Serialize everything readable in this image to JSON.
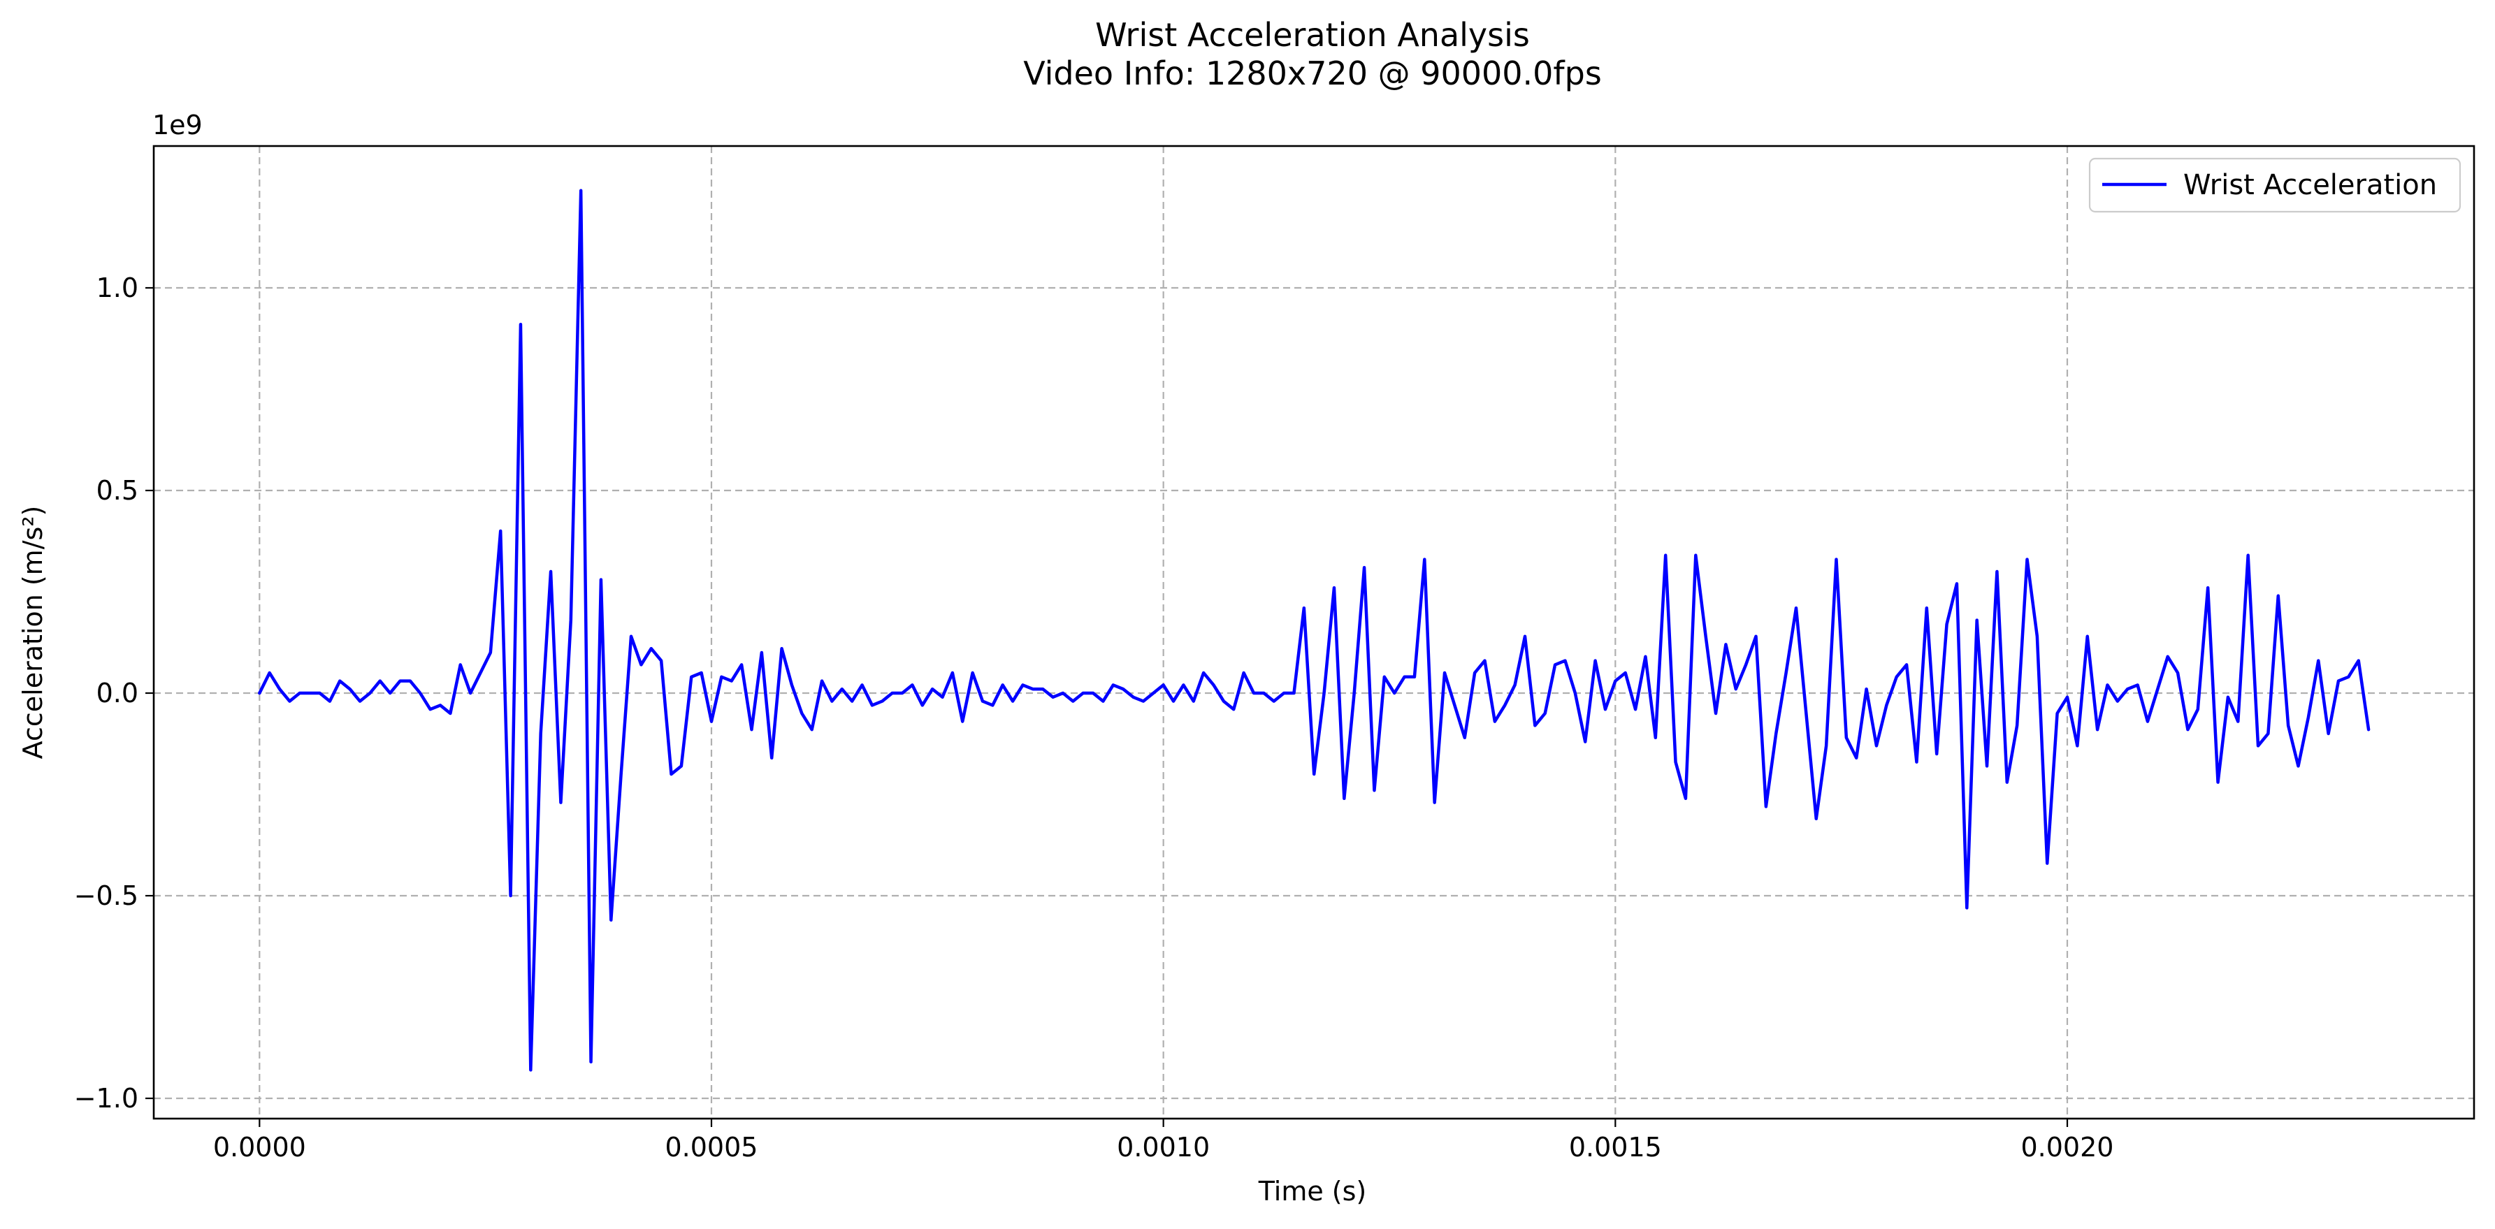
{
  "chart_data": {
    "type": "line",
    "title_lines": [
      "Wrist Acceleration Analysis",
      "Video Info: 1280x720 @ 90000.0fps"
    ],
    "xlabel": "Time (s)",
    "ylabel": "Acceleration (m/s²)",
    "y_offset_label": "1e9",
    "xlim": [
      -0.000117,
      0.00245
    ],
    "ylim": [
      -1.05,
      1.35
    ],
    "x_ticks": [
      0.0,
      0.0005,
      0.001,
      0.0015,
      0.002
    ],
    "x_tick_labels": [
      "0.0000",
      "0.0005",
      "0.0010",
      "0.0015",
      "0.0020"
    ],
    "y_ticks": [
      -1.0,
      -0.5,
      0.0,
      0.5,
      1.0
    ],
    "y_tick_labels": [
      "−1.0",
      "−0.5",
      "0.0",
      "0.5",
      "1.0"
    ],
    "grid": true,
    "legend_position": "top-right",
    "series": [
      {
        "name": "Wrist Acceleration",
        "color": "#0000ff",
        "x_start": 0.0,
        "x_step": 1.11111e-05,
        "y_units": "1e9 m/s²",
        "y": [
          0.0,
          0.05,
          0.01,
          -0.02,
          0.0,
          0.0,
          0.0,
          -0.02,
          0.03,
          0.01,
          -0.02,
          0.0,
          0.03,
          0.0,
          0.03,
          0.03,
          0.0,
          -0.04,
          -0.03,
          -0.05,
          0.07,
          0.0,
          0.05,
          0.1,
          0.4,
          -0.5,
          0.91,
          -0.93,
          -0.1,
          0.3,
          -0.27,
          0.18,
          1.24,
          -0.91,
          0.28,
          -0.56,
          -0.2,
          0.14,
          0.07,
          0.11,
          0.08,
          -0.2,
          -0.18,
          0.04,
          0.05,
          -0.07,
          0.04,
          0.03,
          0.07,
          -0.09,
          0.1,
          -0.16,
          0.11,
          0.02,
          -0.05,
          -0.09,
          0.03,
          -0.02,
          0.01,
          -0.02,
          0.02,
          -0.03,
          -0.02,
          0.0,
          0.0,
          0.02,
          -0.03,
          0.01,
          -0.01,
          0.05,
          -0.07,
          0.05,
          -0.02,
          -0.03,
          0.02,
          -0.02,
          0.02,
          0.01,
          0.01,
          -0.01,
          0.0,
          -0.02,
          0.0,
          0.0,
          -0.02,
          0.02,
          0.01,
          -0.01,
          -0.02,
          0.0,
          0.02,
          -0.02,
          0.02,
          -0.02,
          0.05,
          0.02,
          -0.02,
          -0.04,
          0.05,
          0.0,
          0.0,
          -0.02,
          0.0,
          0.0,
          0.21,
          -0.2,
          0.0,
          0.26,
          -0.26,
          0.0,
          0.31,
          -0.24,
          0.04,
          0.0,
          0.04,
          0.04,
          0.33,
          -0.27,
          0.05,
          -0.03,
          -0.11,
          0.05,
          0.08,
          -0.07,
          -0.03,
          0.02,
          0.14,
          -0.08,
          -0.05,
          0.07,
          0.08,
          0.0,
          -0.12,
          0.08,
          -0.04,
          0.03,
          0.05,
          -0.04,
          0.09,
          -0.11,
          0.34,
          -0.17,
          -0.26,
          0.34,
          0.14,
          -0.05,
          0.12,
          0.01,
          0.07,
          0.14,
          -0.28,
          -0.1,
          0.05,
          0.21,
          -0.05,
          -0.31,
          -0.13,
          0.33,
          -0.11,
          -0.16,
          0.01,
          -0.13,
          -0.03,
          0.04,
          0.07,
          -0.17,
          0.21,
          -0.15,
          0.17,
          0.27,
          -0.53,
          0.18,
          -0.18,
          0.3,
          -0.22,
          -0.08,
          0.33,
          0.14,
          -0.42,
          -0.05,
          -0.01,
          -0.13,
          0.14,
          -0.09,
          0.02,
          -0.02,
          0.01,
          0.02,
          -0.07,
          0.01,
          0.09,
          0.05,
          -0.09,
          -0.04,
          0.26,
          -0.22,
          -0.01,
          -0.07,
          0.34,
          -0.13,
          -0.1,
          0.24,
          -0.08,
          -0.18,
          -0.06,
          0.08,
          -0.1,
          0.03,
          0.04,
          0.08,
          -0.09
        ]
      }
    ]
  }
}
